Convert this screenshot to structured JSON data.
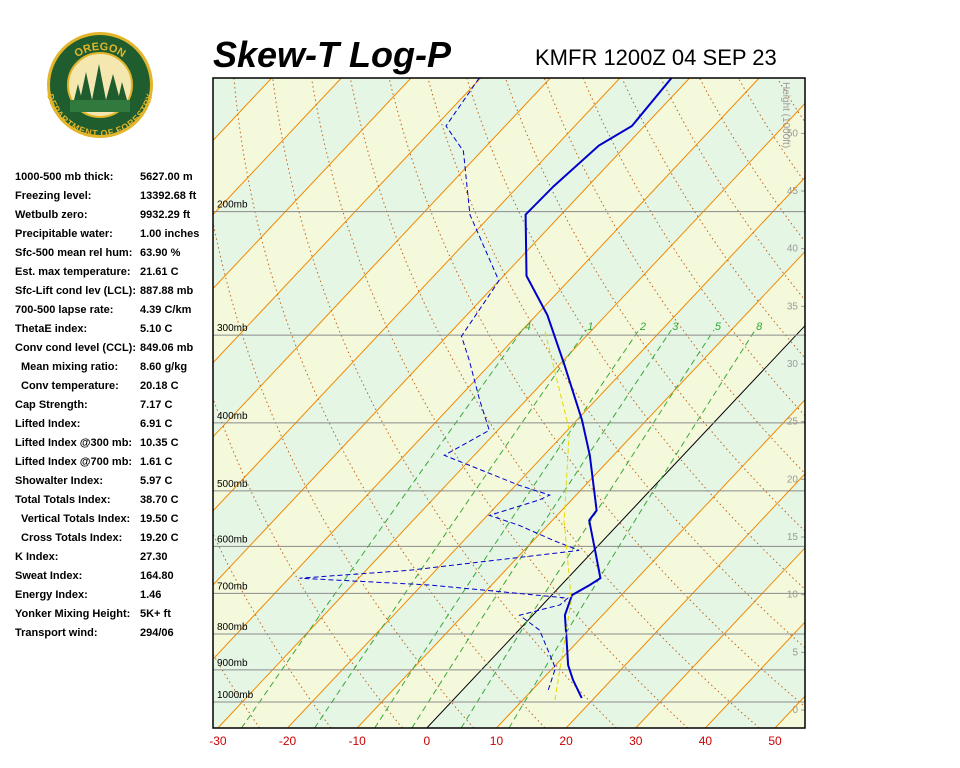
{
  "logo": {
    "top": "OREGON",
    "bottom": "DEPARTMENT OF FORESTRY"
  },
  "indices": [
    {
      "label": "1000-500 mb thick:",
      "value": "5627.00 m"
    },
    {
      "label": "Freezing level:",
      "value": "13392.68 ft"
    },
    {
      "label": "Wetbulb zero:",
      "value": "9932.29 ft"
    },
    {
      "label": "Precipitable water:",
      "value": "1.00 inches"
    },
    {
      "label": "Sfc-500 mean rel hum:",
      "value": "63.90 %"
    },
    {
      "label": "Est. max temperature:",
      "value": "21.61 C"
    },
    {
      "label": "Sfc-Lift cond lev (LCL):",
      "value": "887.88 mb"
    },
    {
      "label": "700-500 lapse rate:",
      "value": "4.39 C/km"
    },
    {
      "label": "ThetaE index:",
      "value": "5.10 C"
    },
    {
      "label": "Conv cond level (CCL):",
      "value": "849.06 mb"
    },
    {
      "label": "Mean mixing ratio:",
      "value": "8.60 g/kg"
    },
    {
      "label": "Conv temperature:",
      "value": "20.18 C"
    },
    {
      "label": "Cap Strength:",
      "value": "7.17 C"
    },
    {
      "label": "Lifted Index:",
      "value": "6.91 C"
    },
    {
      "label": "Lifted Index @300 mb:",
      "value": "10.35 C"
    },
    {
      "label": "Lifted Index @700 mb:",
      "value": "1.61 C"
    },
    {
      "label": "Showalter Index:",
      "value": "5.97 C"
    },
    {
      "label": "Total Totals Index:",
      "value": "38.70 C"
    },
    {
      "label": "Vertical Totals Index:",
      "value": "19.50 C"
    },
    {
      "label": "Cross Totals Index:",
      "value": "19.20 C"
    },
    {
      "label": "K Index:",
      "value": "27.30"
    },
    {
      "label": "Sweat Index:",
      "value": "164.80"
    },
    {
      "label": "Energy Index:",
      "value": "1.46"
    },
    {
      "label": "Yonker Mixing Height:",
      "value": "5K+ ft"
    },
    {
      "label": "Transport wind:",
      "value": "294/06"
    }
  ],
  "chart_data": {
    "type": "skew-t",
    "title": "Skew-T Log-P",
    "subtitle": "KMFR 1200Z 04 SEP 23",
    "xlim": [
      -30.7,
      54.3
    ],
    "xticks": [
      -30,
      -20,
      -10,
      0,
      10,
      20,
      30,
      40,
      50
    ],
    "ylim": [
      1089,
      129
    ],
    "y_scale": "log",
    "yticks": [
      {
        "value": 200,
        "label": "200mb"
      },
      {
        "value": 300,
        "label": "300mb"
      },
      {
        "value": 400,
        "label": "400mb"
      },
      {
        "value": 500,
        "label": "500mb"
      },
      {
        "value": 600,
        "label": "600mb"
      },
      {
        "value": 700,
        "label": "700mb"
      },
      {
        "value": 800,
        "label": "800mb"
      },
      {
        "value": 900,
        "label": "900mb"
      },
      {
        "value": 1000,
        "label": "1000mb"
      }
    ],
    "y2label": "Height (1000ft)",
    "y2lim": [
      -1.56,
      54.8
    ],
    "y2ticks": [
      0,
      5,
      10,
      15,
      20,
      25,
      30,
      35,
      40,
      45,
      50
    ],
    "isotherm_interval": 10,
    "dry_adiabat_interval": 10,
    "mixing_ratios": [
      {
        "value": 0.4,
        "label": ".4"
      },
      1,
      2,
      3,
      5,
      8
    ],
    "series": [
      {
        "color": "#0000cc",
        "style": "solid",
        "pressure": [
          987,
          930,
          886,
          816,
          752,
          704,
          681,
          666,
          608,
          551,
          533,
          445,
          397,
          331,
          281,
          247,
          202,
          184,
          161,
          151,
          129
        ],
        "values": [
          18.2,
          14.5,
          11.8,
          8.2,
          4.6,
          2.9,
          4.1,
          4.7,
          0.2,
          -4.7,
          -5.0,
          -13.4,
          -19.2,
          -29.2,
          -38.4,
          -46.7,
          -55.1,
          -54.9,
          -53.9,
          -51.8,
          -52.6
        ]
      },
      {
        "color": "#0000cc",
        "style": "dashed",
        "pressure": [
          961,
          895,
          790,
          752,
          727,
          711,
          681,
          666,
          649,
          608,
          589,
          560,
          542,
          515,
          507,
          491,
          460,
          445,
          410,
          371,
          326,
          301,
          251,
          202,
          164,
          151,
          129
        ],
        "values": [
          12.3,
          10.4,
          3.0,
          -1.9,
          2.5,
          2.7,
          -18.9,
          -38.5,
          -23.8,
          -2.1,
          -7.0,
          -14.1,
          -19.7,
          -14.6,
          -13.8,
          -19.5,
          -29.3,
          -34.3,
          -31.2,
          -36.7,
          -43.5,
          -47.9,
          -50.0,
          -63.1,
          -72.6,
          -78.5,
          -80.2
        ]
      },
      {
        "color": "#e6d800",
        "style": "dashed",
        "pressure": [
          993,
          716,
          551,
          410,
          295
        ],
        "values": [
          14.6,
          3.5,
          -8.3,
          -19.7,
          -36.8
        ]
      }
    ]
  }
}
